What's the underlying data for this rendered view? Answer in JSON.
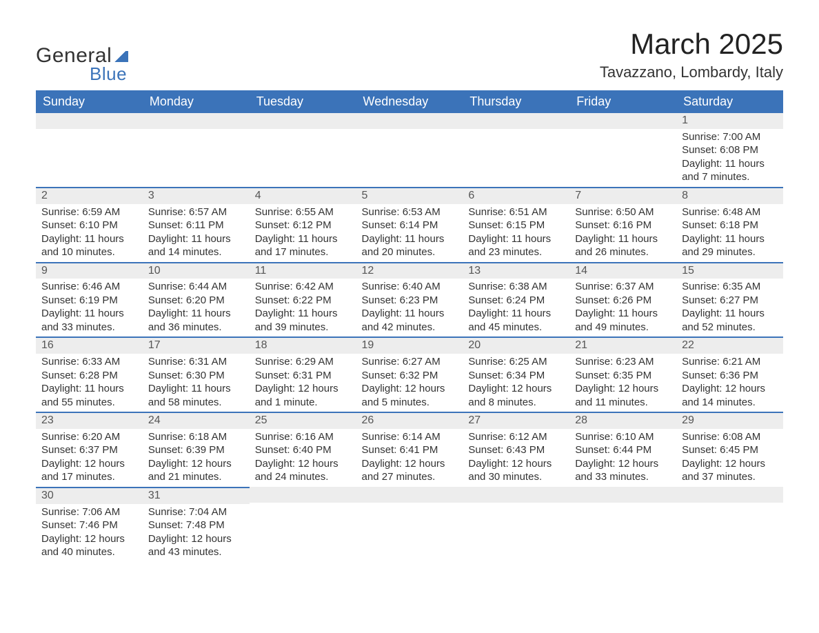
{
  "brand": {
    "part1": "Gener",
    "part2": "al",
    "sub": "Blue"
  },
  "title": "March 2025",
  "location": "Tavazzano, Lombardy, Italy",
  "weekdays": [
    "Sunday",
    "Monday",
    "Tuesday",
    "Wednesday",
    "Thursday",
    "Friday",
    "Saturday"
  ],
  "colors": {
    "header_bg": "#3b73b9",
    "header_text": "#ffffff",
    "daynum_bg": "#ededed",
    "row_divider": "#3b73b9",
    "text": "#333333"
  },
  "weeks": [
    [
      null,
      null,
      null,
      null,
      null,
      null,
      {
        "n": "1",
        "sr": "Sunrise: 7:00 AM",
        "ss": "Sunset: 6:08 PM",
        "d1": "Daylight: 11 hours",
        "d2": "and 7 minutes."
      }
    ],
    [
      {
        "n": "2",
        "sr": "Sunrise: 6:59 AM",
        "ss": "Sunset: 6:10 PM",
        "d1": "Daylight: 11 hours",
        "d2": "and 10 minutes."
      },
      {
        "n": "3",
        "sr": "Sunrise: 6:57 AM",
        "ss": "Sunset: 6:11 PM",
        "d1": "Daylight: 11 hours",
        "d2": "and 14 minutes."
      },
      {
        "n": "4",
        "sr": "Sunrise: 6:55 AM",
        "ss": "Sunset: 6:12 PM",
        "d1": "Daylight: 11 hours",
        "d2": "and 17 minutes."
      },
      {
        "n": "5",
        "sr": "Sunrise: 6:53 AM",
        "ss": "Sunset: 6:14 PM",
        "d1": "Daylight: 11 hours",
        "d2": "and 20 minutes."
      },
      {
        "n": "6",
        "sr": "Sunrise: 6:51 AM",
        "ss": "Sunset: 6:15 PM",
        "d1": "Daylight: 11 hours",
        "d2": "and 23 minutes."
      },
      {
        "n": "7",
        "sr": "Sunrise: 6:50 AM",
        "ss": "Sunset: 6:16 PM",
        "d1": "Daylight: 11 hours",
        "d2": "and 26 minutes."
      },
      {
        "n": "8",
        "sr": "Sunrise: 6:48 AM",
        "ss": "Sunset: 6:18 PM",
        "d1": "Daylight: 11 hours",
        "d2": "and 29 minutes."
      }
    ],
    [
      {
        "n": "9",
        "sr": "Sunrise: 6:46 AM",
        "ss": "Sunset: 6:19 PM",
        "d1": "Daylight: 11 hours",
        "d2": "and 33 minutes."
      },
      {
        "n": "10",
        "sr": "Sunrise: 6:44 AM",
        "ss": "Sunset: 6:20 PM",
        "d1": "Daylight: 11 hours",
        "d2": "and 36 minutes."
      },
      {
        "n": "11",
        "sr": "Sunrise: 6:42 AM",
        "ss": "Sunset: 6:22 PM",
        "d1": "Daylight: 11 hours",
        "d2": "and 39 minutes."
      },
      {
        "n": "12",
        "sr": "Sunrise: 6:40 AM",
        "ss": "Sunset: 6:23 PM",
        "d1": "Daylight: 11 hours",
        "d2": "and 42 minutes."
      },
      {
        "n": "13",
        "sr": "Sunrise: 6:38 AM",
        "ss": "Sunset: 6:24 PM",
        "d1": "Daylight: 11 hours",
        "d2": "and 45 minutes."
      },
      {
        "n": "14",
        "sr": "Sunrise: 6:37 AM",
        "ss": "Sunset: 6:26 PM",
        "d1": "Daylight: 11 hours",
        "d2": "and 49 minutes."
      },
      {
        "n": "15",
        "sr": "Sunrise: 6:35 AM",
        "ss": "Sunset: 6:27 PM",
        "d1": "Daylight: 11 hours",
        "d2": "and 52 minutes."
      }
    ],
    [
      {
        "n": "16",
        "sr": "Sunrise: 6:33 AM",
        "ss": "Sunset: 6:28 PM",
        "d1": "Daylight: 11 hours",
        "d2": "and 55 minutes."
      },
      {
        "n": "17",
        "sr": "Sunrise: 6:31 AM",
        "ss": "Sunset: 6:30 PM",
        "d1": "Daylight: 11 hours",
        "d2": "and 58 minutes."
      },
      {
        "n": "18",
        "sr": "Sunrise: 6:29 AM",
        "ss": "Sunset: 6:31 PM",
        "d1": "Daylight: 12 hours",
        "d2": "and 1 minute."
      },
      {
        "n": "19",
        "sr": "Sunrise: 6:27 AM",
        "ss": "Sunset: 6:32 PM",
        "d1": "Daylight: 12 hours",
        "d2": "and 5 minutes."
      },
      {
        "n": "20",
        "sr": "Sunrise: 6:25 AM",
        "ss": "Sunset: 6:34 PM",
        "d1": "Daylight: 12 hours",
        "d2": "and 8 minutes."
      },
      {
        "n": "21",
        "sr": "Sunrise: 6:23 AM",
        "ss": "Sunset: 6:35 PM",
        "d1": "Daylight: 12 hours",
        "d2": "and 11 minutes."
      },
      {
        "n": "22",
        "sr": "Sunrise: 6:21 AM",
        "ss": "Sunset: 6:36 PM",
        "d1": "Daylight: 12 hours",
        "d2": "and 14 minutes."
      }
    ],
    [
      {
        "n": "23",
        "sr": "Sunrise: 6:20 AM",
        "ss": "Sunset: 6:37 PM",
        "d1": "Daylight: 12 hours",
        "d2": "and 17 minutes."
      },
      {
        "n": "24",
        "sr": "Sunrise: 6:18 AM",
        "ss": "Sunset: 6:39 PM",
        "d1": "Daylight: 12 hours",
        "d2": "and 21 minutes."
      },
      {
        "n": "25",
        "sr": "Sunrise: 6:16 AM",
        "ss": "Sunset: 6:40 PM",
        "d1": "Daylight: 12 hours",
        "d2": "and 24 minutes."
      },
      {
        "n": "26",
        "sr": "Sunrise: 6:14 AM",
        "ss": "Sunset: 6:41 PM",
        "d1": "Daylight: 12 hours",
        "d2": "and 27 minutes."
      },
      {
        "n": "27",
        "sr": "Sunrise: 6:12 AM",
        "ss": "Sunset: 6:43 PM",
        "d1": "Daylight: 12 hours",
        "d2": "and 30 minutes."
      },
      {
        "n": "28",
        "sr": "Sunrise: 6:10 AM",
        "ss": "Sunset: 6:44 PM",
        "d1": "Daylight: 12 hours",
        "d2": "and 33 minutes."
      },
      {
        "n": "29",
        "sr": "Sunrise: 6:08 AM",
        "ss": "Sunset: 6:45 PM",
        "d1": "Daylight: 12 hours",
        "d2": "and 37 minutes."
      }
    ],
    [
      {
        "n": "30",
        "sr": "Sunrise: 7:06 AM",
        "ss": "Sunset: 7:46 PM",
        "d1": "Daylight: 12 hours",
        "d2": "and 40 minutes."
      },
      {
        "n": "31",
        "sr": "Sunrise: 7:04 AM",
        "ss": "Sunset: 7:48 PM",
        "d1": "Daylight: 12 hours",
        "d2": "and 43 minutes."
      },
      null,
      null,
      null,
      null,
      null
    ]
  ]
}
